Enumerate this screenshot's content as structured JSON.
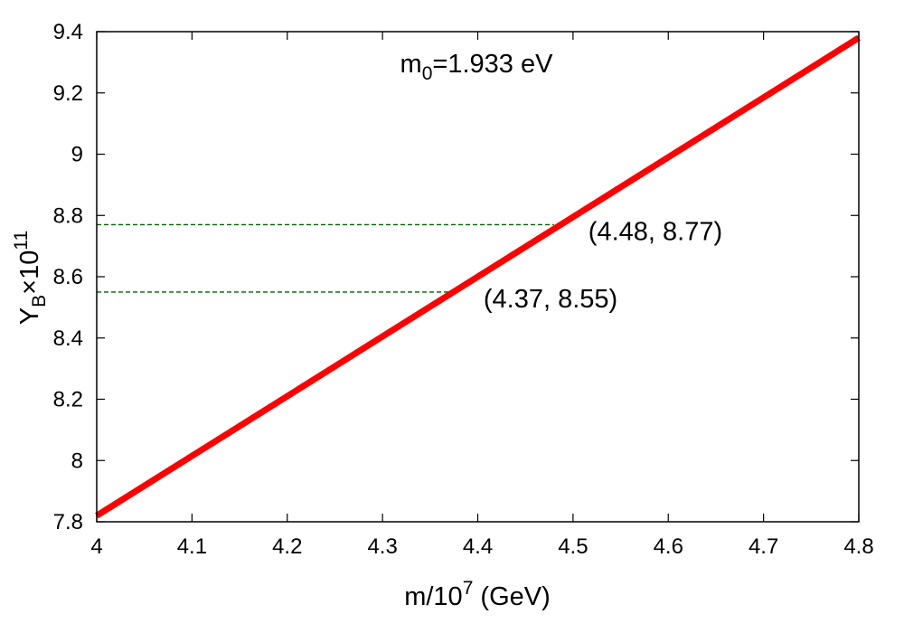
{
  "chart_data": {
    "type": "line",
    "title": "",
    "annotation_text": {
      "base": "m",
      "sub": "0",
      "rest": "=1.933 eV"
    },
    "xlabel": {
      "base": "m/10",
      "sup": "7",
      "rest": " (GeV)"
    },
    "ylabel": {
      "base": "Y",
      "sub": "B",
      "mid": "×10",
      "sup": "11"
    },
    "xlim": [
      4.0,
      4.8
    ],
    "ylim": [
      7.8,
      9.4
    ],
    "x_ticks": [
      "4",
      "4.1",
      "4.2",
      "4.3",
      "4.4",
      "4.5",
      "4.6",
      "4.7",
      "4.8"
    ],
    "y_ticks": [
      "7.8",
      "8",
      "8.2",
      "8.4",
      "8.6",
      "8.8",
      "9",
      "9.2",
      "9.4"
    ],
    "grid": false,
    "series": [
      {
        "color": "#ff0000",
        "x": [
          4.0,
          4.8
        ],
        "y": [
          7.82,
          9.38
        ]
      }
    ],
    "reference_lines": [
      {
        "color": "#006400",
        "style": "dashed",
        "x_end": 4.48,
        "y": 8.77,
        "label": "(4.48, 8.77)"
      },
      {
        "color": "#006400",
        "style": "dashed",
        "x_end": 4.37,
        "y": 8.55,
        "label": "(4.37, 8.55)"
      }
    ]
  }
}
